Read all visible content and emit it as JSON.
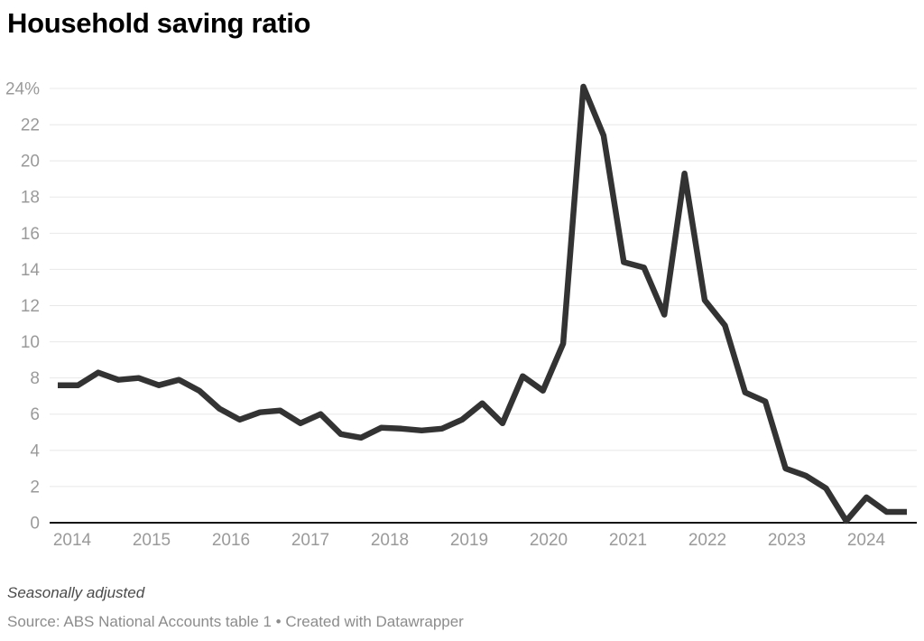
{
  "header": {
    "title": "Household saving ratio"
  },
  "chart_data": {
    "type": "line",
    "title": "Household saving ratio",
    "subtitle": "",
    "unit": "%",
    "frequency": "quarterly",
    "x_start_quarter": "2013-Q4",
    "x_end_quarter": "2024-Q2",
    "x_step": "quarter",
    "x_tick_labels": [
      "2014",
      "2015",
      "2016",
      "2017",
      "2018",
      "2019",
      "2020",
      "2021",
      "2022",
      "2023",
      "2024"
    ],
    "y_ticks": [
      0,
      2,
      4,
      6,
      8,
      10,
      12,
      14,
      16,
      18,
      20,
      22,
      24
    ],
    "y_tick_labels": [
      "0",
      "2",
      "4",
      "6",
      "8",
      "10",
      "12",
      "14",
      "16",
      "18",
      "20",
      "22",
      "24%"
    ],
    "ylim": [
      0,
      24.5
    ],
    "grid": true,
    "legend_position": "none",
    "line_color": "#333333",
    "grid_color": "#e8e8e8",
    "axis_color": "#161616",
    "tick_label_color": "#9a9a9a",
    "series": [
      {
        "name": "Household saving ratio (%)",
        "values": [
          7.6,
          7.6,
          8.3,
          7.9,
          8.0,
          7.6,
          7.9,
          7.3,
          6.3,
          5.7,
          6.1,
          6.2,
          5.5,
          6.0,
          4.9,
          4.7,
          5.25,
          5.2,
          5.1,
          5.2,
          5.7,
          6.6,
          5.5,
          8.1,
          7.3,
          9.9,
          24.1,
          21.4,
          14.4,
          14.1,
          11.5,
          19.3,
          12.3,
          10.9,
          7.2,
          6.7,
          3.0,
          2.6,
          1.9,
          0.1,
          1.4,
          0.6,
          0.6
        ]
      }
    ]
  },
  "footer": {
    "note": "Seasonally adjusted",
    "source": "Source: ABS National Accounts table 1 • Created with Datawrapper"
  }
}
